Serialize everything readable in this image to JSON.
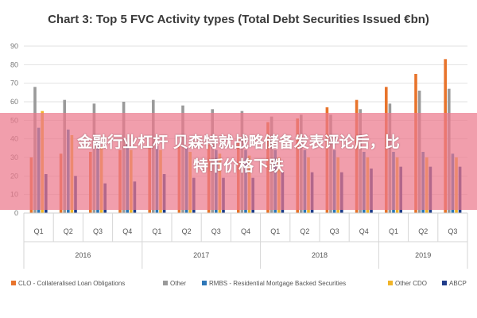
{
  "chart_data": {
    "type": "bar",
    "title": "Chart 3: Top 5 FVC Activity types (Total Debt Securities Issued €bn)",
    "ylim": [
      0,
      90
    ],
    "yticks": [
      0,
      10,
      20,
      30,
      40,
      50,
      60,
      70,
      80,
      90
    ],
    "grid": true,
    "legend_position": "bottom",
    "categories": [
      "Q1",
      "Q2",
      "Q3",
      "Q4",
      "Q1",
      "Q2",
      "Q3",
      "Q4",
      "Q1",
      "Q2",
      "Q3",
      "Q4",
      "Q1",
      "Q2",
      "Q3"
    ],
    "years": [
      {
        "label": "2016",
        "quarters": 4
      },
      {
        "label": "2017",
        "quarters": 4
      },
      {
        "label": "2018",
        "quarters": 4
      },
      {
        "label": "2019",
        "quarters": 3
      }
    ],
    "series": [
      {
        "name": "CLO - Collateralised Loan Obligations",
        "color": "#e8742c",
        "values": [
          30,
          32,
          33,
          34,
          35,
          36,
          37,
          40,
          49,
          51,
          57,
          61,
          68,
          75,
          83
        ]
      },
      {
        "name": "Other",
        "color": "#9a9a9a",
        "values": [
          68,
          61,
          59,
          60,
          61,
          58,
          56,
          55,
          52,
          53,
          53,
          56,
          59,
          66,
          67
        ]
      },
      {
        "name": "RMBS - Residential Mortgage Backed Securities",
        "color": "#2e77b8",
        "values": [
          46,
          45,
          38,
          37,
          36,
          35,
          34,
          34,
          34,
          34,
          34,
          33,
          33,
          33,
          32
        ]
      },
      {
        "name": "Other CDO",
        "color": "#f0b429",
        "values": [
          55,
          42,
          36,
          34,
          34,
          33,
          32,
          31,
          30,
          30,
          30,
          30,
          30,
          30,
          30
        ]
      },
      {
        "name": "ABCP",
        "color": "#1f3c8a",
        "values": [
          21,
          20,
          16,
          17,
          21,
          19,
          19,
          19,
          22,
          22,
          22,
          24,
          25,
          25,
          25
        ]
      }
    ]
  },
  "overlay": {
    "line1": "金融行业杠杆 贝森特就战略储备发表评论后，比",
    "line2": "特币价格下跌"
  }
}
